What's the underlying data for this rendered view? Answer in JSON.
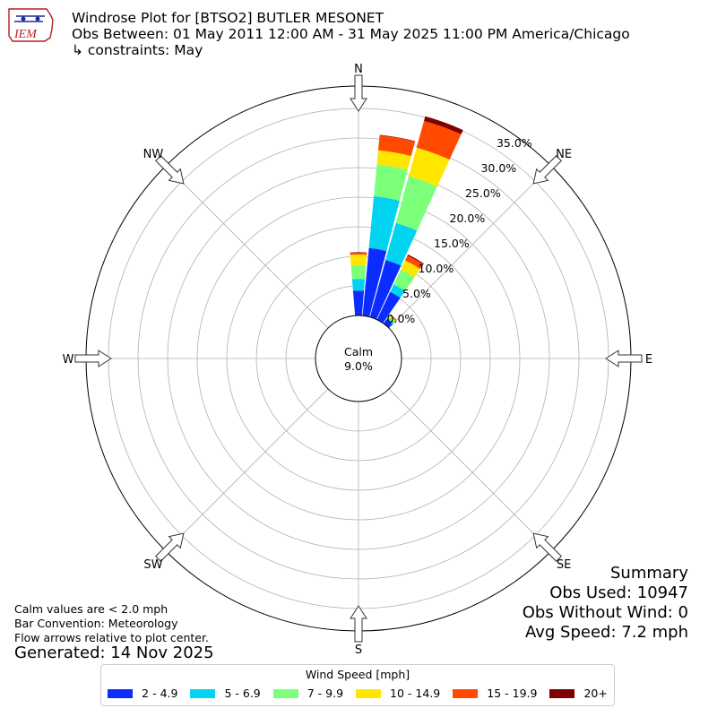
{
  "header": {
    "logo_text": "IEM",
    "title_line1": "Windrose Plot for [BTSO2] BUTLER MESONET",
    "title_line2": "Obs Between: 01 May 2011 12:00 AM - 31 May 2025 11:00 PM America/Chicago",
    "title_line3": "↳ constraints: May"
  },
  "chart_data": {
    "type": "windrose",
    "directions": [
      "N",
      "NE",
      "E",
      "SE",
      "S",
      "SW",
      "W",
      "NW"
    ],
    "radial_ticks": [
      "0.0%",
      "5.0%",
      "10.0%",
      "15.0%",
      "20.0%",
      "25.0%",
      "30.0%",
      "35.0%"
    ],
    "radial_max": 35,
    "calm_label": "Calm",
    "calm_value": "9.0%",
    "legend_title": "Wind Speed [mph]",
    "speed_bins": [
      {
        "label": "2 - 4.9",
        "color": "#0a2cff"
      },
      {
        "label": "5 - 6.9",
        "color": "#00d4f0"
      },
      {
        "label": "7 - 9.9",
        "color": "#7cff79"
      },
      {
        "label": "10 - 14.9",
        "color": "#ffe600"
      },
      {
        "label": "15 - 19.9",
        "color": "#ff4a00"
      },
      {
        "label": "20+",
        "color": "#7f0000"
      }
    ],
    "sectors": [
      {
        "direction_deg": 0,
        "cumulative": [
          4.2,
          6.2,
          8.5,
          10.3,
          10.6,
          10.7
        ]
      },
      {
        "direction_deg": 10,
        "cumulative": [
          11.5,
          20.3,
          25.7,
          28.1,
          30.6,
          30.7
        ]
      },
      {
        "direction_deg": 20,
        "cumulative": [
          10.0,
          16.5,
          24.7,
          29.7,
          34.4,
          35.2
        ]
      },
      {
        "direction_deg": 30,
        "cumulative": [
          5.2,
          6.6,
          9.4,
          11.1,
          12.0,
          12.2
        ]
      },
      {
        "direction_deg": 40,
        "cumulative": [
          0.9,
          1.2,
          1.5,
          1.7,
          1.85,
          1.9
        ]
      }
    ],
    "grid": true
  },
  "notes": {
    "line1": "Calm values are < 2.0 mph",
    "line2": "Bar Convention: Meteorology",
    "line3": "Flow arrows relative to plot center.",
    "generated": "Generated: 14 Nov 2025"
  },
  "summary": {
    "title": "Summary",
    "obs_used": "Obs Used: 10947",
    "obs_without_wind": "Obs Without Wind: 0",
    "avg_speed": "Avg Speed: 7.2 mph"
  }
}
